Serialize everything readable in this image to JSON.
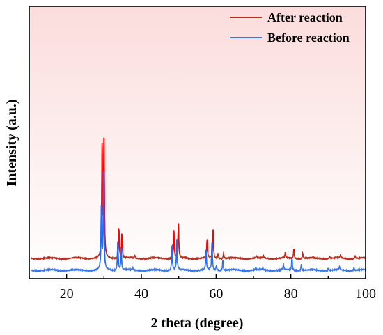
{
  "chart_data": {
    "type": "line",
    "xlabel": "2 theta (degree)",
    "ylabel": "Intensity (a.u.)",
    "xlim": [
      10,
      100
    ],
    "x_ticks": [
      20,
      40,
      60,
      80,
      100
    ],
    "y_ticks_shown": false,
    "grid": false,
    "legend_position": "top-right",
    "background_gradient": [
      "#fbdcdc",
      "#ffffff"
    ],
    "series": [
      {
        "name": "After reaction",
        "color": "#b5301f",
        "highlight_color": "#ff0000",
        "baseline": 1.1,
        "peaks": [
          [
            29.5,
            10.0
          ],
          [
            30.0,
            10.8
          ],
          [
            34.0,
            2.7
          ],
          [
            34.8,
            2.2
          ],
          [
            38.2,
            0.3
          ],
          [
            48.7,
            2.6
          ],
          [
            49.9,
            3.2
          ],
          [
            57.6,
            1.7
          ],
          [
            59.2,
            2.7
          ],
          [
            60.5,
            0.5
          ],
          [
            62.0,
            0.5
          ],
          [
            70.8,
            0.2
          ],
          [
            72.7,
            0.2
          ],
          [
            78.5,
            0.5
          ],
          [
            80.8,
            0.9
          ],
          [
            83.2,
            0.5
          ],
          [
            90.4,
            0.2
          ],
          [
            93.3,
            0.3
          ],
          [
            97.2,
            0.3
          ]
        ]
      },
      {
        "name": "Before reaction",
        "color": "#3b78e6",
        "highlight_color": "#1e6bff",
        "baseline": 0.0,
        "peaks": [
          [
            29.3,
            5.6
          ],
          [
            29.9,
            8.9
          ],
          [
            33.7,
            2.7
          ],
          [
            34.6,
            2.0
          ],
          [
            37.7,
            0.2
          ],
          [
            48.2,
            2.3
          ],
          [
            49.5,
            2.8
          ],
          [
            57.3,
            1.8
          ],
          [
            58.9,
            2.5
          ],
          [
            60.1,
            0.5
          ],
          [
            61.8,
            0.9
          ],
          [
            70.6,
            0.2
          ],
          [
            72.5,
            0.2
          ],
          [
            78.0,
            0.5
          ],
          [
            80.3,
            1.1
          ],
          [
            82.8,
            0.6
          ],
          [
            90.0,
            0.2
          ],
          [
            93.0,
            0.3
          ],
          [
            96.9,
            0.3
          ]
        ]
      }
    ]
  }
}
